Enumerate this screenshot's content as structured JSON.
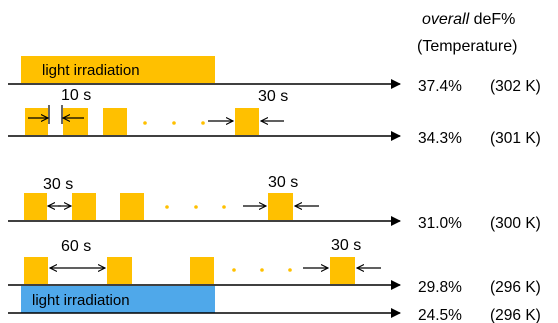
{
  "header": {
    "line1_italic": "overall",
    "line1_rest": " deF%",
    "line2": "(Temperature)"
  },
  "colors": {
    "pulse": "#FFC000",
    "continuous": "#FFC000",
    "continuous_blue": "#4FA8EA",
    "dots": "#FFC000",
    "axis": "#000000"
  },
  "rows": [
    {
      "bar_label": "light irradiation",
      "result": "37.4%",
      "temperature": "(302 K)"
    },
    {
      "on_label": "30 s",
      "off_label": "10 s",
      "result": "34.3%",
      "temperature": "(301 K)"
    },
    {
      "on_label": "30 s",
      "off_label": "30 s",
      "result": "31.0%",
      "temperature": "(300 K)"
    },
    {
      "on_label": "30 s",
      "off_label": "60 s",
      "result": "29.8%",
      "temperature": "(296 K)"
    },
    {
      "bar_label": "light irradiation",
      "result": "24.5%",
      "temperature": "(296 K)"
    }
  ]
}
